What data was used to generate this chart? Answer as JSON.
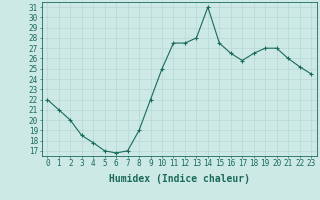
{
  "x": [
    0,
    1,
    2,
    3,
    4,
    5,
    6,
    7,
    8,
    9,
    10,
    11,
    12,
    13,
    14,
    15,
    16,
    17,
    18,
    19,
    20,
    21,
    22,
    23
  ],
  "y": [
    22,
    21,
    20,
    18.5,
    17.8,
    17,
    16.8,
    17,
    19,
    22,
    25,
    27.5,
    27.5,
    28,
    31,
    27.5,
    26.5,
    25.8,
    26.5,
    27,
    27,
    26,
    25.2,
    24.5
  ],
  "line_color": "#1a6b5a",
  "marker": "+",
  "marker_size": 3,
  "bg_color": "#cce9e5",
  "grid_color": "#b8d8d4",
  "xlabel": "Humidex (Indice chaleur)",
  "ylim": [
    16.5,
    31.5
  ],
  "yticks": [
    17,
    18,
    19,
    20,
    21,
    22,
    23,
    24,
    25,
    26,
    27,
    28,
    29,
    30,
    31
  ],
  "xticks": [
    0,
    1,
    2,
    3,
    4,
    5,
    6,
    7,
    8,
    9,
    10,
    11,
    12,
    13,
    14,
    15,
    16,
    17,
    18,
    19,
    20,
    21,
    22,
    23
  ],
  "tick_fontsize": 5.5,
  "label_fontsize": 7,
  "axis_color": "#1a6b5a",
  "line_width": 0.8,
  "marker_edge_width": 0.8
}
